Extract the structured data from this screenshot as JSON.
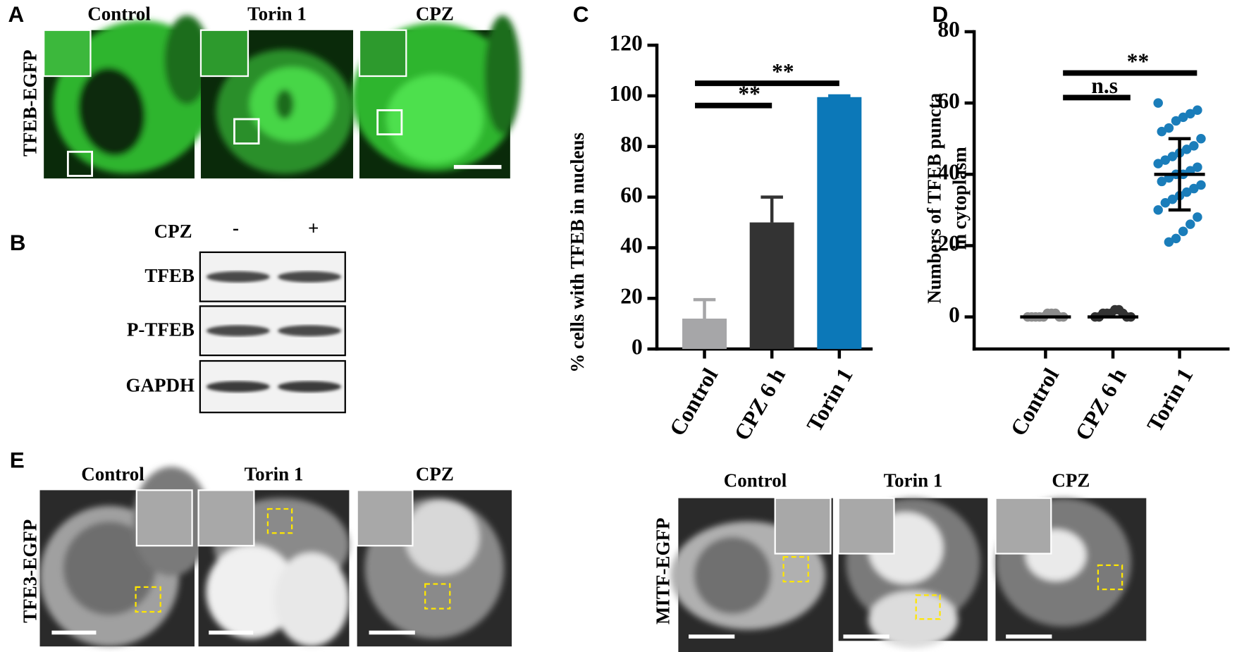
{
  "panels": {
    "A": {
      "label": "A",
      "row_label": "TFEB-EGFP",
      "columns": [
        "Control",
        "Torin 1",
        "CPZ"
      ]
    },
    "B": {
      "label": "B",
      "treatment": "CPZ",
      "conditions": [
        "-",
        "+"
      ],
      "rows": [
        "TFEB",
        "P-TFEB",
        "GAPDH"
      ]
    },
    "E": {
      "label": "E",
      "left": {
        "row_label": "TFE3-EGFP",
        "columns": [
          "Control",
          "Torin 1",
          "CPZ"
        ]
      },
      "right": {
        "row_label": "MITF-EGFP",
        "columns": [
          "Control",
          "Torin 1",
          "CPZ"
        ]
      }
    }
  },
  "chart_data": [
    {
      "type": "bar",
      "panel_label": "C",
      "ylabel": "% cells with TFEB in nucleus",
      "categories": [
        "Control",
        "CPZ 6 h",
        "Torin 1"
      ],
      "values": [
        12,
        50,
        99.5
      ],
      "errors": [
        7.5,
        10,
        0.5
      ],
      "colors": [
        "#a6a6a8",
        "#333333",
        "#0c78b8"
      ],
      "ylim": [
        0,
        120
      ],
      "yticks": [
        0,
        20,
        40,
        60,
        80,
        100,
        120
      ],
      "significance": [
        {
          "from": 0,
          "to": 1,
          "label": "**"
        },
        {
          "from": 0,
          "to": 2,
          "label": "**"
        }
      ]
    },
    {
      "type": "dot",
      "panel_label": "D",
      "ylabel": [
        "Numbers of TFEB puncta",
        "in cytoplasm"
      ],
      "categories": [
        "Control",
        "CPZ 6 h",
        "Torin 1"
      ],
      "points": [
        [
          0,
          0,
          0,
          0,
          0,
          1,
          1,
          1,
          0,
          0
        ],
        [
          0,
          0,
          1,
          1,
          1,
          2,
          2,
          1,
          0,
          0
        ],
        [
          60,
          58,
          57,
          56,
          55,
          53,
          52,
          50,
          48,
          47,
          46,
          45,
          44,
          43,
          42,
          41,
          40,
          40,
          39,
          38,
          37,
          36,
          35,
          34,
          33,
          32,
          30,
          28,
          26,
          24,
          22,
          21
        ]
      ],
      "means": [
        0,
        0,
        40
      ],
      "sd": [
        0,
        0,
        10
      ],
      "colors": [
        "#8c8c8c",
        "#333333",
        "#1a7dba"
      ],
      "ylim": [
        -9,
        80
      ],
      "yticks": [
        0,
        20,
        40,
        60,
        80
      ],
      "significance": [
        {
          "from": 0,
          "to": 1,
          "label": "n.s"
        },
        {
          "from": 0,
          "to": 2,
          "label": "**"
        }
      ]
    }
  ]
}
